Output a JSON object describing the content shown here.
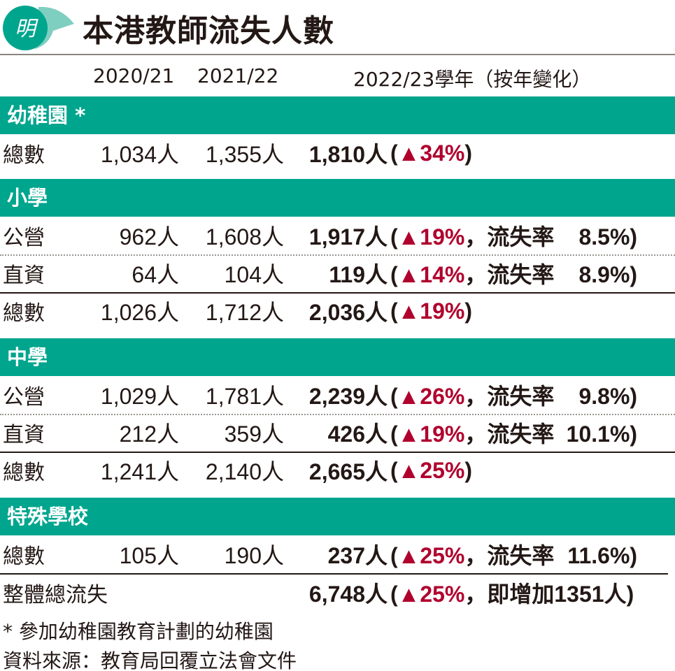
{
  "header": {
    "logo_text": "明",
    "title": "本港教師流失人數"
  },
  "columns": [
    "2020/21",
    "2021/22",
    "2022/23學年（按年變化）"
  ],
  "unit": "人",
  "rate_label": "，流失率",
  "up_symbol": "▲",
  "sections": [
    {
      "title": "幼稚園 *",
      "rows": [
        {
          "label": "總數",
          "y2020": "1,034",
          "y2021": "1,355",
          "y2022": "1,810",
          "change": "34%",
          "rate": null
        }
      ]
    },
    {
      "title": "小學",
      "rows": [
        {
          "label": "公營",
          "y2020": "962",
          "y2021": "1,608",
          "y2022": "1,917",
          "change": "19%",
          "rate": "8.5%"
        },
        {
          "label": "直資",
          "y2020": "64",
          "y2021": "104",
          "y2022": "119",
          "change": "14%",
          "rate": "8.9%"
        },
        {
          "label": "總數",
          "y2020": "1,026",
          "y2021": "1,712",
          "y2022": "2,036",
          "change": "19%",
          "rate": null
        }
      ]
    },
    {
      "title": "中學",
      "rows": [
        {
          "label": "公營",
          "y2020": "1,029",
          "y2021": "1,781",
          "y2022": "2,239",
          "change": "26%",
          "rate": "9.8%"
        },
        {
          "label": "直資",
          "y2020": "212",
          "y2021": "359",
          "y2022": "426",
          "change": "19%",
          "rate": "10.1%"
        },
        {
          "label": "總數",
          "y2020": "1,241",
          "y2021": "2,140",
          "y2022": "2,665",
          "change": "25%",
          "rate": null
        }
      ]
    },
    {
      "title": "特殊學校",
      "rows": [
        {
          "label": "總數",
          "y2020": "105",
          "y2021": "190",
          "y2022": "237",
          "change": "25%",
          "rate": "11.6%"
        }
      ]
    }
  ],
  "overall": {
    "label": "整體總流失",
    "y2022": "6,748",
    "change": "25%",
    "extra": "，即增加1351人"
  },
  "footnotes": [
    "* 參加幼稚園教育計劃的幼稚園",
    "資料來源：教育局回覆立法會文件"
  ],
  "colors": {
    "accent": "#00a58e",
    "up": "#b0002d",
    "logo_light": "#7fcfc0"
  }
}
